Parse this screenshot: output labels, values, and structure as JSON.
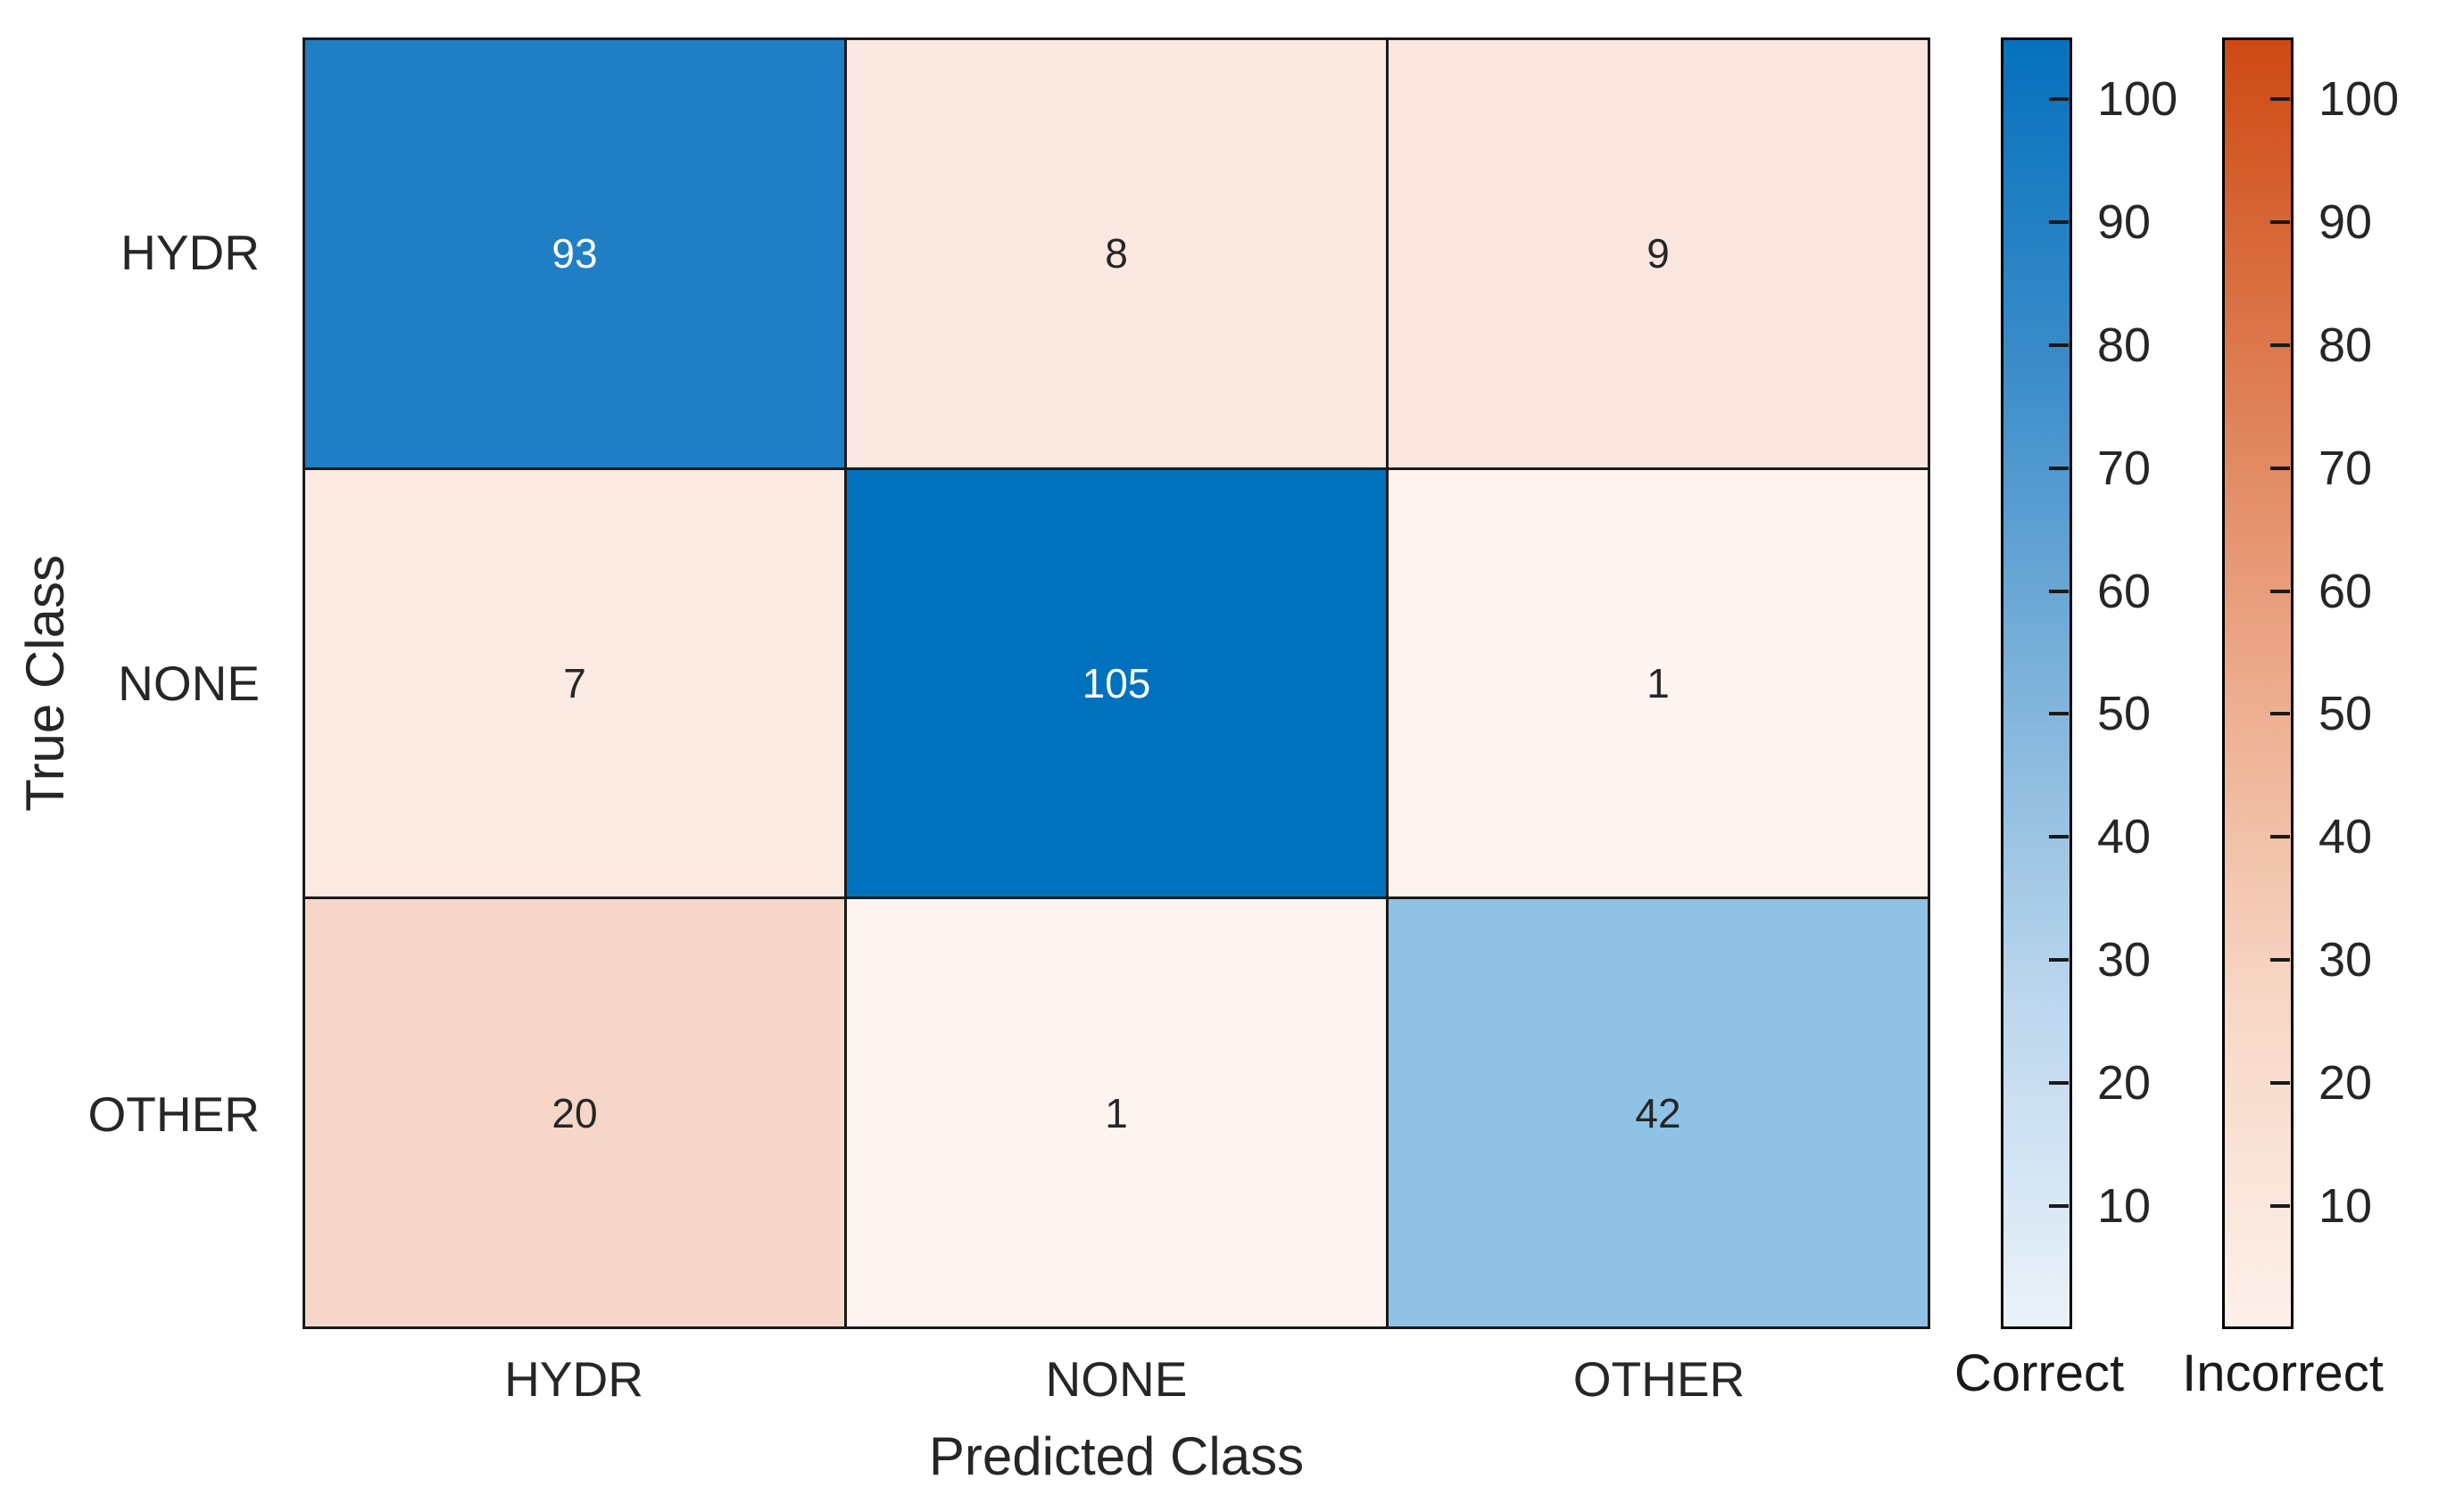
{
  "colors": {
    "background": "#FFFFFF",
    "grid_line": "#1A1A1A",
    "text": "#262626",
    "value_text_light": "#FFFFFF",
    "diagonal_base": "#0072BD",
    "off_diagonal_base": "#D95319"
  },
  "chart_data": {
    "type": "heatmap",
    "subtype": "confusion-matrix",
    "title": "",
    "xlabel": "Predicted Class",
    "ylabel": "True Class",
    "classes": [
      "HYDR",
      "NONE",
      "OTHER"
    ],
    "matrix": [
      [
        93,
        8,
        9
      ],
      [
        7,
        105,
        1
      ],
      [
        20,
        1,
        42
      ]
    ],
    "cell_colors": [
      [
        "#1F7EC4",
        "#FBE8E0",
        "#FAE6DE"
      ],
      [
        "#FBEAE2",
        "#0072BD",
        "#FDF3EF"
      ],
      [
        "#F6D6C8",
        "#FDF4F0",
        "#8FC2E4"
      ]
    ],
    "cell_text_colors": [
      [
        "#FFFFFF",
        "#262626",
        "#262626"
      ],
      [
        "#262626",
        "#FFFFFF",
        "#262626"
      ],
      [
        "#262626",
        "#262626",
        "#262626"
      ]
    ],
    "scale": {
      "min": 0,
      "max": 105,
      "ticks": [
        10,
        20,
        30,
        40,
        50,
        60,
        70,
        80,
        90,
        100
      ]
    },
    "colorbars": [
      {
        "caption": "Correct",
        "gradient": [
          "#0571BD",
          "#3A8CC9",
          "#7DB2DA",
          "#BDD7ED",
          "#EAF2F9"
        ]
      },
      {
        "caption": "Incorrect",
        "gradient": [
          "#CE4A13",
          "#DD7A4F",
          "#ECAB8C",
          "#F7D7C6",
          "#FCF0EA"
        ]
      }
    ],
    "legend_position": "right",
    "grid": "off"
  }
}
